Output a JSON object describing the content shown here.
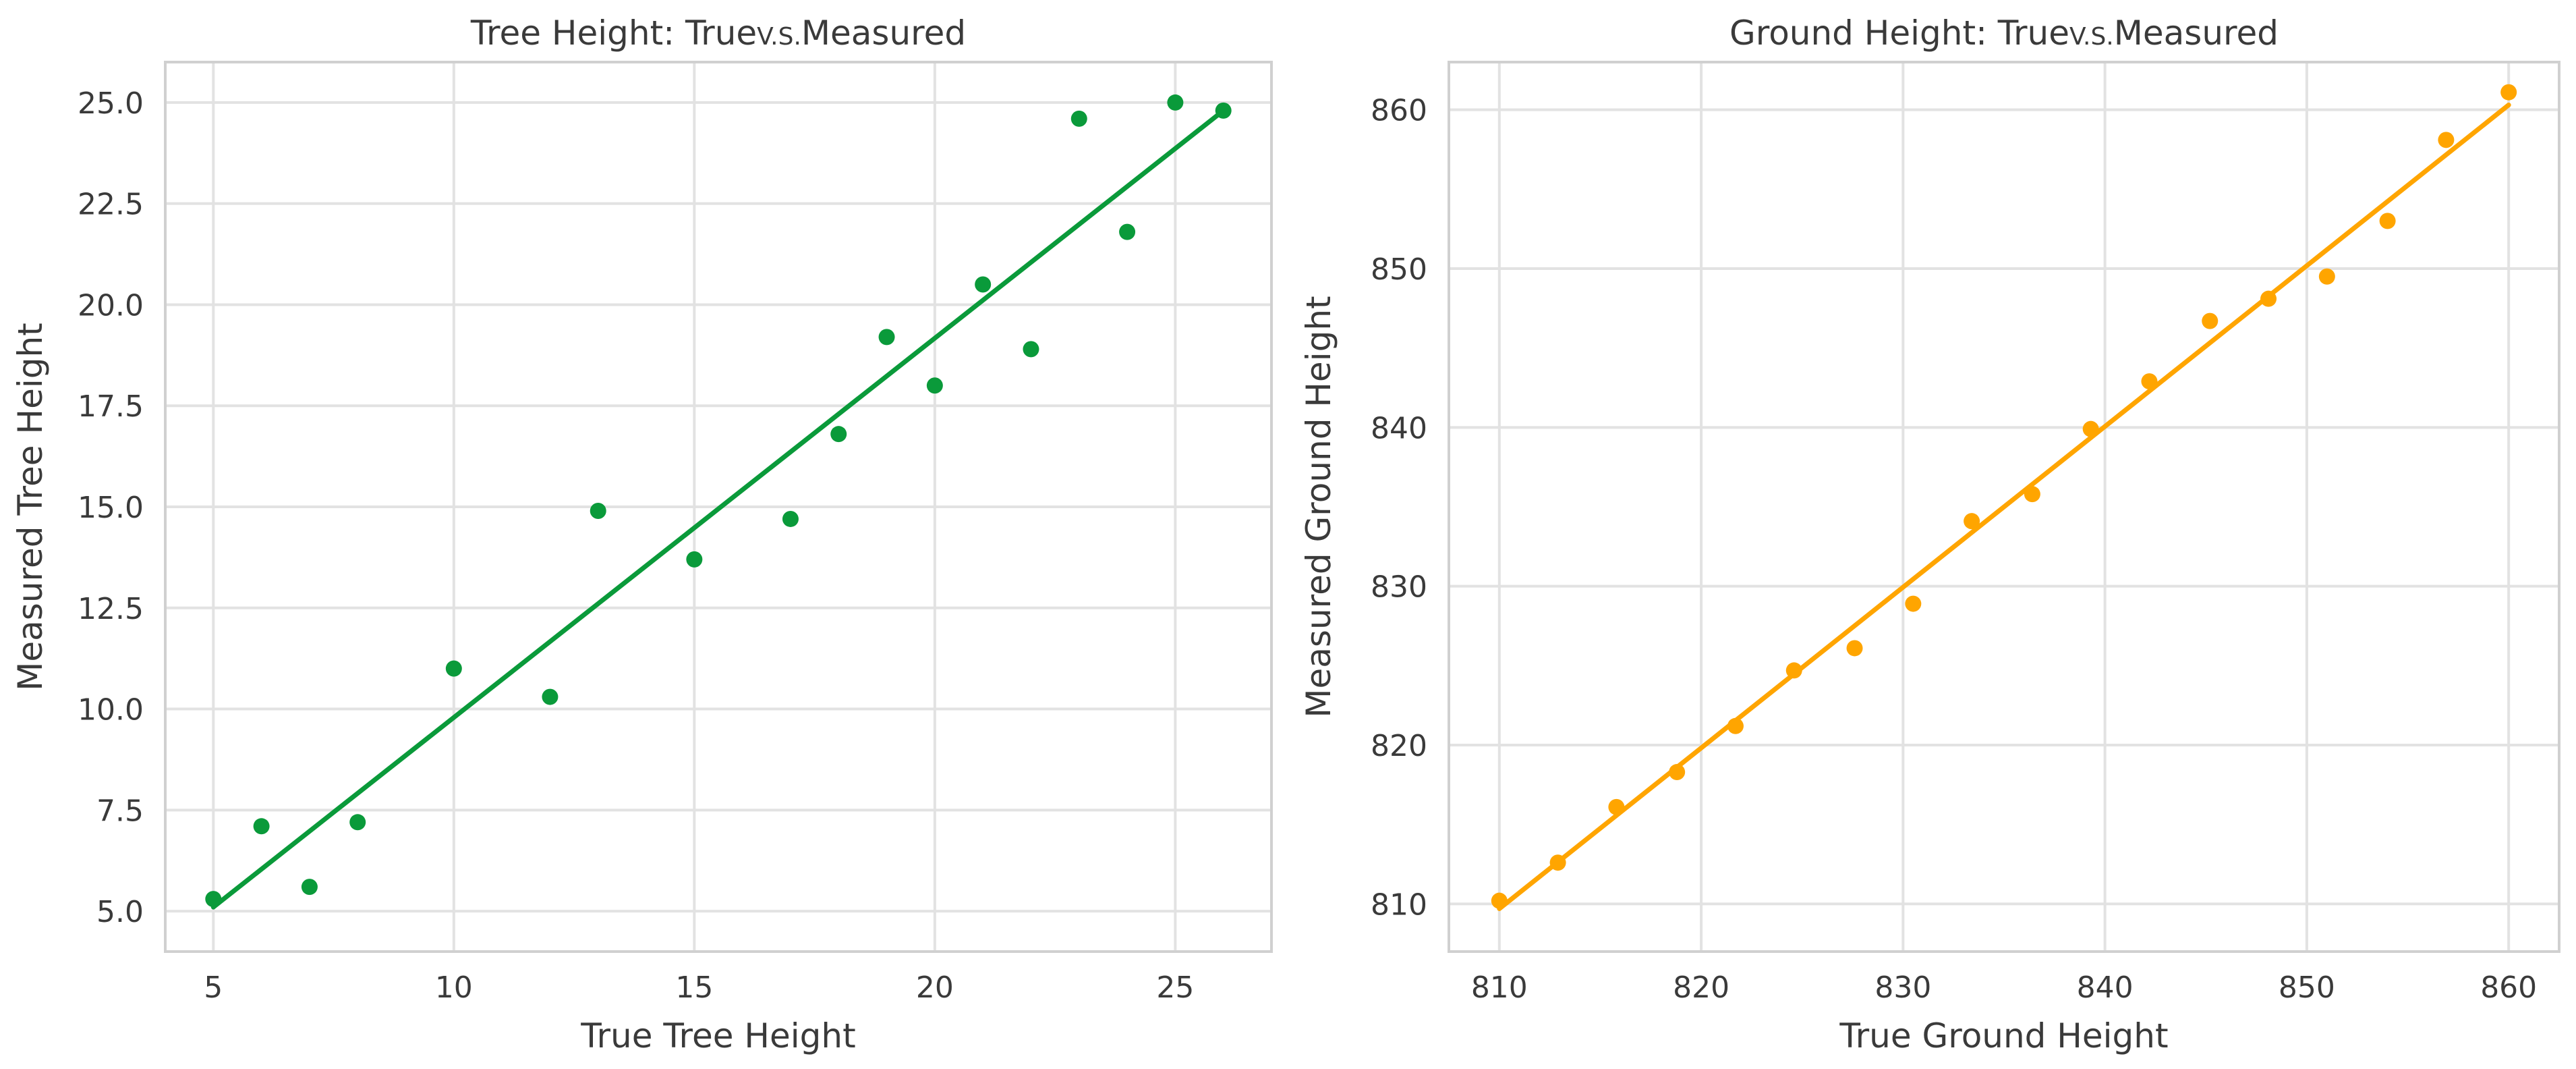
{
  "chart_data": [
    {
      "type": "scatter",
      "title_main": "Tree Height: True",
      "title_vs": "V.S.",
      "title_end": "Measured",
      "xlabel": "True Tree Height",
      "ylabel": "Measured Tree Height",
      "xlim": [
        4,
        27
      ],
      "ylim": [
        4.0,
        26.0
      ],
      "xticks": [
        5,
        10,
        15,
        20,
        25
      ],
      "xtick_labels": [
        "5",
        "10",
        "15",
        "20",
        "25"
      ],
      "yticks": [
        5.0,
        7.5,
        10.0,
        12.5,
        15.0,
        17.5,
        20.0,
        22.5,
        25.0
      ],
      "ytick_labels": [
        "5.0",
        "7.5",
        "10.0",
        "12.5",
        "15.0",
        "17.5",
        "20.0",
        "22.5",
        "25.0"
      ],
      "grid": true,
      "color": "#0a9a3a",
      "x": [
        5,
        6,
        7,
        8,
        10,
        12,
        13,
        15,
        17,
        18,
        19,
        20,
        21,
        22,
        23,
        24,
        25,
        26
      ],
      "y": [
        5.3,
        7.1,
        5.6,
        7.2,
        11.0,
        10.3,
        14.9,
        13.7,
        14.7,
        16.8,
        19.2,
        18.0,
        20.5,
        18.9,
        24.6,
        21.8,
        25.0,
        24.8
      ],
      "fit_line": {
        "x": [
          5,
          26
        ],
        "y": [
          5.1,
          24.8
        ]
      }
    },
    {
      "type": "scatter",
      "title_main": "Ground Height: True",
      "title_vs": "V.S.",
      "title_end": "Measured",
      "xlabel": "True Ground Height",
      "ylabel": "Measured Ground Height",
      "xlim": [
        807.5,
        862.5
      ],
      "ylim": [
        807.0,
        863.0
      ],
      "xticks": [
        810,
        820,
        830,
        840,
        850,
        860
      ],
      "xtick_labels": [
        "810",
        "820",
        "830",
        "840",
        "850",
        "860"
      ],
      "yticks": [
        810,
        820,
        830,
        840,
        850,
        860
      ],
      "ytick_labels": [
        "810",
        "820",
        "830",
        "840",
        "850",
        "860"
      ],
      "grid": true,
      "color": "#ffa500",
      "x": [
        810.0,
        812.9,
        815.8,
        818.8,
        821.7,
        824.6,
        827.6,
        830.5,
        833.4,
        836.4,
        839.3,
        842.2,
        845.2,
        848.1,
        851.0,
        854.0,
        856.9,
        860.0
      ],
      "y": [
        810.2,
        812.6,
        816.1,
        818.3,
        821.2,
        824.7,
        826.1,
        828.9,
        834.1,
        835.8,
        839.9,
        842.9,
        846.7,
        848.1,
        849.5,
        853.0,
        858.1,
        861.1
      ],
      "fit_line": {
        "x": [
          810,
          860
        ],
        "y": [
          809.7,
          860.3
        ]
      }
    }
  ]
}
